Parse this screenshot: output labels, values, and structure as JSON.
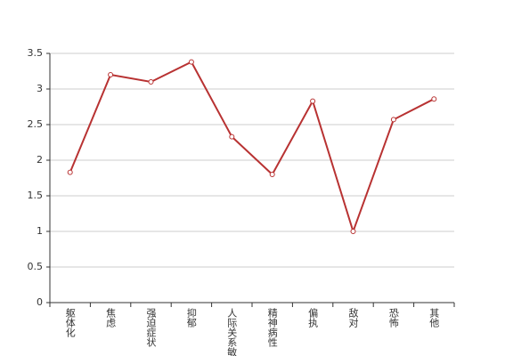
{
  "chart_data": {
    "type": "line",
    "categories": [
      "躯体化",
      "焦虑",
      "强迫症状",
      "抑郁",
      "人际关系敏感",
      "精神病性",
      "偏执",
      "敌对",
      "恐怖",
      "其他"
    ],
    "series": [
      {
        "color": "#b83232",
        "values": [
          1.83,
          3.2,
          3.1,
          3.38,
          2.33,
          1.8,
          2.83,
          1.0,
          2.57,
          2.86
        ]
      }
    ],
    "ylim": [
      0,
      3.5
    ],
    "yticks": [
      0,
      0.5,
      1,
      1.5,
      2,
      2.5,
      3,
      3.5
    ],
    "grid": true
  }
}
